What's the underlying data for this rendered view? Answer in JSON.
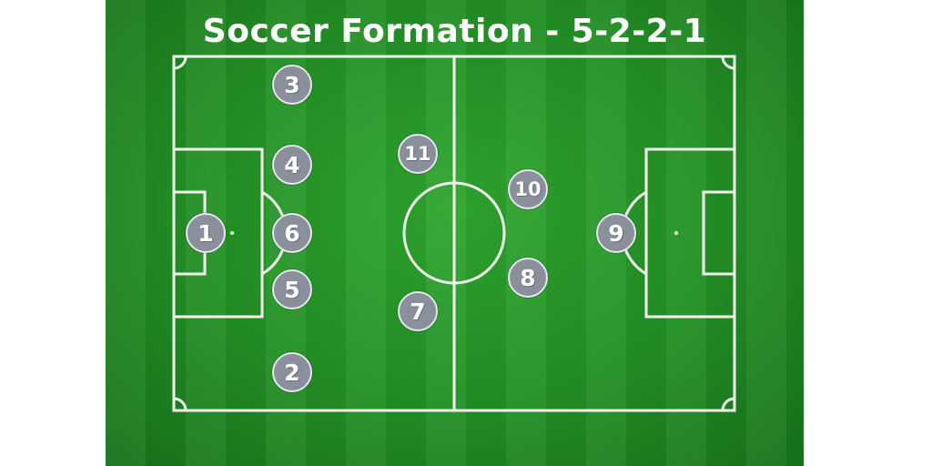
{
  "title": "Soccer Formation - 5-2-2-1",
  "colors": {
    "pitch": "#238f25",
    "lines": "#f2f7ee",
    "player_fill": "#8a8f9c",
    "player_border": "#e6e8ee",
    "title": "#ffffff"
  },
  "players": [
    {
      "number": "1"
    },
    {
      "number": "2"
    },
    {
      "number": "3"
    },
    {
      "number": "4"
    },
    {
      "number": "5"
    },
    {
      "number": "6"
    },
    {
      "number": "7"
    },
    {
      "number": "8"
    },
    {
      "number": "9"
    },
    {
      "number": "10"
    },
    {
      "number": "11"
    }
  ]
}
